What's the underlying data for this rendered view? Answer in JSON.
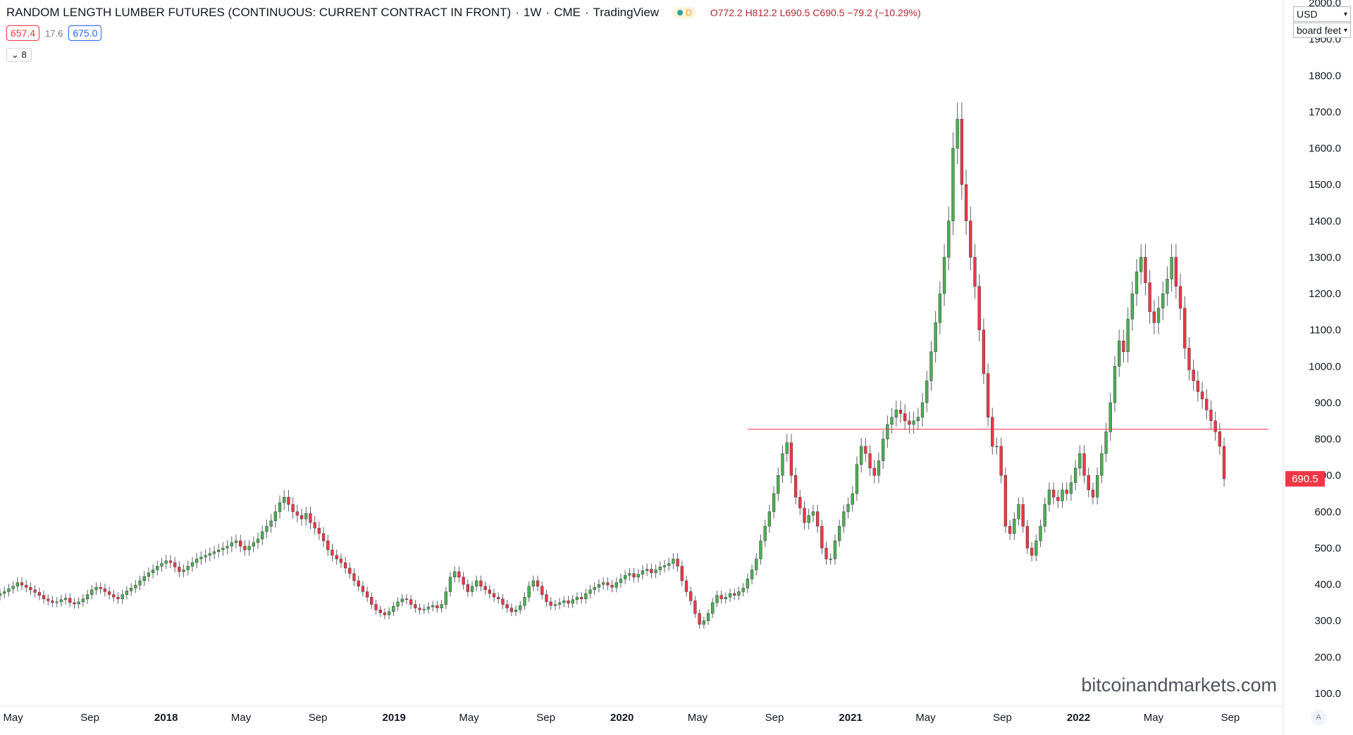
{
  "header": {
    "title": "RANDOM LENGTH LUMBER FUTURES (CONTINUOUS: CURRENT CONTRACT IN FRONT)",
    "interval": "1W",
    "exchange": "CME",
    "provider": "TradingView",
    "status_letter": "D",
    "ohlc": "O772.2 H812.2 L690.5 C690.5 −79.2 (−10.29%)",
    "sell_price": "657.4",
    "spread": "17.6",
    "buy_price": "675.0",
    "indicators_toggle": "8"
  },
  "currency_select": "USD",
  "unit_select": "board feet",
  "last_price_label": "690.5",
  "watermark": "bitcoinandmarkets.com",
  "auto_scale_label": "A",
  "colors": {
    "up": "#4caf50",
    "down": "#f23645",
    "hline": "#f23645",
    "axis_text": "#131722"
  },
  "chart_data": {
    "type": "candlestick",
    "ylim": [
      80,
      2000
    ],
    "y_ticks": [
      100,
      200,
      300,
      400,
      500,
      600,
      700,
      800,
      900,
      1000,
      1100,
      1200,
      1300,
      1400,
      1500,
      1600,
      1700,
      1800,
      1900,
      2000
    ],
    "x_ticks": [
      {
        "label": "May",
        "date": "2017-05-01",
        "bold": false
      },
      {
        "label": "Sep",
        "date": "2017-09-01",
        "bold": false
      },
      {
        "label": "2018",
        "date": "2018-01-01",
        "bold": true
      },
      {
        "label": "May",
        "date": "2018-05-01",
        "bold": false
      },
      {
        "label": "Sep",
        "date": "2018-09-01",
        "bold": false
      },
      {
        "label": "2019",
        "date": "2019-01-01",
        "bold": true
      },
      {
        "label": "May",
        "date": "2019-05-01",
        "bold": false
      },
      {
        "label": "Sep",
        "date": "2019-09-01",
        "bold": false
      },
      {
        "label": "2020",
        "date": "2020-01-01",
        "bold": true
      },
      {
        "label": "May",
        "date": "2020-05-01",
        "bold": false
      },
      {
        "label": "Sep",
        "date": "2020-09-01",
        "bold": false
      },
      {
        "label": "2021",
        "date": "2021-01-01",
        "bold": true
      },
      {
        "label": "May",
        "date": "2021-05-01",
        "bold": false
      },
      {
        "label": "Sep",
        "date": "2021-09-01",
        "bold": false
      },
      {
        "label": "2022",
        "date": "2022-01-01",
        "bold": true
      },
      {
        "label": "May",
        "date": "2022-05-01",
        "bold": false
      },
      {
        "label": "Sep",
        "date": "2022-09-01",
        "bold": false
      }
    ],
    "x_range": [
      "2017-04-10",
      "2022-11-01"
    ],
    "first_candle": "2017-04-10",
    "horizontal_line": {
      "value": 827,
      "from": "2020-07-20"
    },
    "last_price": 690.5,
    "closes": [
      375,
      380,
      388,
      395,
      405,
      398,
      392,
      385,
      378,
      370,
      360,
      355,
      350,
      352,
      358,
      362,
      350,
      346,
      352,
      360,
      372,
      385,
      392,
      388,
      380,
      372,
      365,
      360,
      372,
      382,
      390,
      398,
      410,
      422,
      432,
      440,
      450,
      458,
      465,
      460,
      448,
      435,
      440,
      450,
      460,
      470,
      475,
      480,
      485,
      490,
      495,
      500,
      505,
      515,
      520,
      505,
      495,
      505,
      515,
      525,
      545,
      560,
      575,
      600,
      625,
      640,
      620,
      600,
      590,
      580,
      595,
      570,
      555,
      540,
      520,
      495,
      480,
      470,
      460,
      445,
      430,
      410,
      395,
      380,
      365,
      345,
      330,
      322,
      316,
      325,
      340,
      352,
      360,
      358,
      345,
      335,
      330,
      332,
      338,
      342,
      335,
      345,
      380,
      420,
      435,
      420,
      400,
      380,
      395,
      410,
      395,
      385,
      375,
      365,
      360,
      345,
      335,
      325,
      330,
      342,
      365,
      395,
      410,
      395,
      372,
      352,
      342,
      345,
      350,
      355,
      348,
      358,
      365,
      360,
      375,
      385,
      392,
      400,
      405,
      398,
      392,
      405,
      415,
      425,
      430,
      420,
      428,
      438,
      442,
      432,
      440,
      448,
      452,
      458,
      470,
      450,
      410,
      380,
      355,
      320,
      290,
      300,
      320,
      350,
      370,
      360,
      365,
      375,
      370,
      380,
      390,
      415,
      440,
      470,
      520,
      560,
      600,
      650,
      700,
      760,
      790,
      700,
      640,
      610,
      570,
      590,
      600,
      560,
      500,
      470,
      470,
      520,
      560,
      600,
      620,
      650,
      730,
      780,
      760,
      720,
      700,
      740,
      800,
      840,
      860,
      880,
      870,
      850,
      840,
      850,
      860,
      900,
      960,
      1040,
      1120,
      1200,
      1300,
      1400,
      1600,
      1680,
      1500,
      1400,
      1300,
      1220,
      1100,
      980,
      860,
      780,
      780,
      700,
      560,
      540,
      580,
      620,
      560,
      500,
      480,
      520,
      560,
      620,
      660,
      640,
      630,
      660,
      650,
      680,
      720,
      760,
      700,
      660,
      640,
      700,
      760,
      820,
      900,
      1000,
      1070,
      1040,
      1130,
      1200,
      1260,
      1300,
      1230,
      1150,
      1120,
      1160,
      1200,
      1240,
      1300,
      1220,
      1160,
      1050,
      990,
      960,
      930,
      910,
      880,
      850,
      820,
      780,
      690.5
    ]
  }
}
